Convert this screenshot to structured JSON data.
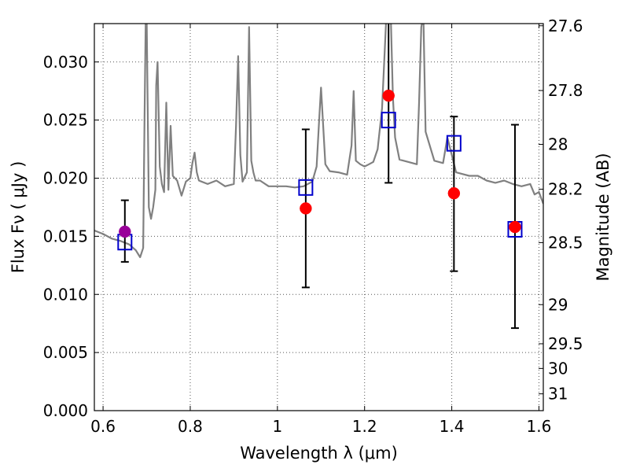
{
  "chart_data": {
    "type": "scatter",
    "title": "",
    "xlabel": "Wavelength  λ (μm)",
    "ylabel": "Flux  Fν  ( μJy )",
    "ylabel_right": "Magnitude (AB)",
    "xlim": [
      0.58,
      1.61
    ],
    "ylim": [
      0.0,
      0.0333
    ],
    "grid": true,
    "legend": "none",
    "x_ticks": [
      0.6,
      0.8,
      1.0,
      1.2,
      1.4,
      1.6
    ],
    "x_tick_labels": [
      "0.6",
      "0.8",
      "1",
      "1.2",
      "1.4",
      "1.6"
    ],
    "y_ticks": [
      0.0,
      0.005,
      0.01,
      0.015,
      0.02,
      0.025,
      0.03
    ],
    "y_tick_labels": [
      "0.000",
      "0.005",
      "0.010",
      "0.015",
      "0.020",
      "0.025",
      "0.030"
    ],
    "right_ticks": [
      {
        "mag": 27.6,
        "label": "27.6"
      },
      {
        "mag": 27.8,
        "label": "27.8"
      },
      {
        "mag": 28.0,
        "label": "28"
      },
      {
        "mag": 28.2,
        "label": "28.2"
      },
      {
        "mag": 28.5,
        "label": "28.5"
      },
      {
        "mag": 29.0,
        "label": "29"
      },
      {
        "mag": 29.5,
        "label": "29.5"
      },
      {
        "mag": 30.0,
        "label": "30"
      },
      {
        "mag": 31.0,
        "label": "31"
      }
    ],
    "colors": {
      "spectrum": "#808080",
      "observed": "#ff0000",
      "model": "#0000cc",
      "optical": "#990099",
      "errorbar": "#000000",
      "grid": "#555555"
    },
    "series": [
      {
        "kind": "spectrum-line",
        "x": [
          0.58,
          0.6,
          0.62,
          0.64,
          0.66,
          0.675,
          0.685,
          0.692,
          0.695,
          0.698,
          0.7,
          0.705,
          0.71,
          0.715,
          0.72,
          0.722,
          0.725,
          0.73,
          0.735,
          0.74,
          0.745,
          0.75,
          0.755,
          0.76,
          0.77,
          0.78,
          0.79,
          0.8,
          0.805,
          0.81,
          0.815,
          0.82,
          0.84,
          0.86,
          0.88,
          0.9,
          0.905,
          0.91,
          0.915,
          0.92,
          0.93,
          0.935,
          0.94,
          0.945,
          0.95,
          0.96,
          0.98,
          1.0,
          1.02,
          1.04,
          1.06,
          1.08,
          1.09,
          1.095,
          1.1,
          1.11,
          1.12,
          1.14,
          1.16,
          1.17,
          1.175,
          1.18,
          1.19,
          1.2,
          1.21,
          1.22,
          1.23,
          1.24,
          1.25,
          1.255,
          1.26,
          1.265,
          1.27,
          1.28,
          1.3,
          1.32,
          1.325,
          1.33,
          1.335,
          1.34,
          1.36,
          1.38,
          1.39,
          1.4,
          1.41,
          1.42,
          1.44,
          1.46,
          1.48,
          1.5,
          1.52,
          1.54,
          1.56,
          1.58,
          1.59,
          1.6,
          1.61
        ],
        "y": [
          0.0155,
          0.0152,
          0.0148,
          0.0146,
          0.0143,
          0.0138,
          0.0132,
          0.014,
          0.025,
          0.034,
          0.034,
          0.0175,
          0.0165,
          0.0175,
          0.019,
          0.028,
          0.03,
          0.021,
          0.0195,
          0.0188,
          0.0265,
          0.019,
          0.0245,
          0.0202,
          0.0198,
          0.0185,
          0.0197,
          0.02,
          0.0213,
          0.0222,
          0.0205,
          0.0198,
          0.0195,
          0.0198,
          0.0193,
          0.0195,
          0.0245,
          0.0305,
          0.022,
          0.0197,
          0.0205,
          0.033,
          0.0215,
          0.0205,
          0.0198,
          0.0198,
          0.0193,
          0.0193,
          0.0193,
          0.0192,
          0.0193,
          0.0197,
          0.021,
          0.0245,
          0.0278,
          0.0212,
          0.0206,
          0.0205,
          0.0203,
          0.0228,
          0.0275,
          0.0215,
          0.0212,
          0.021,
          0.0212,
          0.0214,
          0.0225,
          0.026,
          0.034,
          0.034,
          0.034,
          0.027,
          0.0235,
          0.0216,
          0.0214,
          0.0212,
          0.0265,
          0.033,
          0.034,
          0.024,
          0.0215,
          0.0213,
          0.0235,
          0.022,
          0.0205,
          0.0204,
          0.0202,
          0.0202,
          0.0198,
          0.0196,
          0.0198,
          0.0195,
          0.0193,
          0.0195,
          0.0186,
          0.0188,
          0.0178
        ]
      },
      {
        "kind": "observed",
        "marker": "circle",
        "x": [
          1.065,
          1.255,
          1.405,
          1.545
        ],
        "y": [
          0.0174,
          0.0271,
          0.0187,
          0.0158
        ]
      },
      {
        "kind": "model",
        "marker": "square",
        "x": [
          0.65,
          1.065,
          1.255,
          1.405,
          1.545
        ],
        "y": [
          0.0145,
          0.0192,
          0.025,
          0.023,
          0.0156
        ]
      },
      {
        "kind": "optical",
        "marker": "circle",
        "x": [
          0.65
        ],
        "y": [
          0.0154
        ]
      }
    ],
    "error_bars": [
      {
        "x": 0.65,
        "low": 0.0128,
        "high": 0.0181
      },
      {
        "x": 1.065,
        "low": 0.0106,
        "high": 0.0242
      },
      {
        "x": 1.255,
        "low": 0.0196,
        "high": 0.034
      },
      {
        "x": 1.405,
        "low": 0.012,
        "high": 0.0253
      },
      {
        "x": 1.545,
        "low": 0.0071,
        "high": 0.0246
      }
    ]
  }
}
